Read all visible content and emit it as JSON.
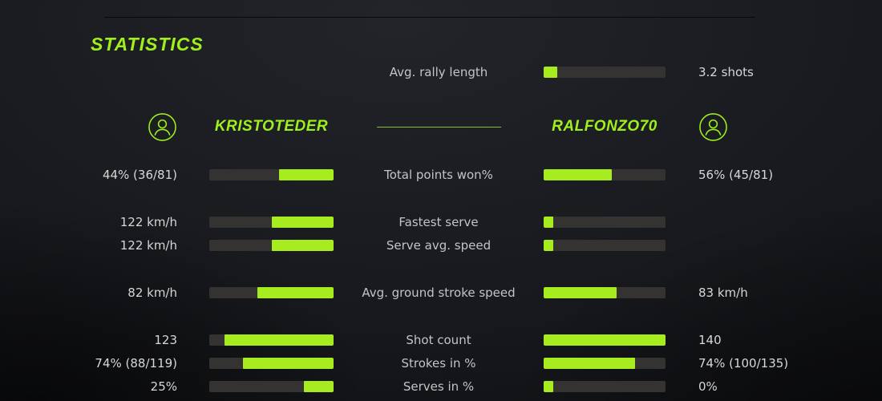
{
  "accent_color": "#a7ec1f",
  "title": "STATISTICS",
  "rally": {
    "label": "Avg. rally length",
    "value": "3.2 shots",
    "fill_pct": 11
  },
  "players": {
    "left": "KRISTOTEDER",
    "right": "RALFONZO70"
  },
  "stats": [
    {
      "label": "Total points won%",
      "left_value": "44% (36/81)",
      "right_value": "56% (45/81)",
      "left_fill_pct": 44,
      "right_fill_pct": 56
    },
    {
      "label": "Fastest serve",
      "left_value": "122 km/h",
      "right_value": "",
      "left_fill_pct": 50,
      "right_fill_pct": 8
    },
    {
      "label": "Serve avg. speed",
      "left_value": "122 km/h",
      "right_value": "",
      "left_fill_pct": 50,
      "right_fill_pct": 8
    },
    {
      "label": "Avg. ground stroke speed",
      "left_value": "82 km/h",
      "right_value": "83 km/h",
      "left_fill_pct": 61,
      "right_fill_pct": 60
    },
    {
      "label": "Shot count",
      "left_value": "123",
      "right_value": "140",
      "left_fill_pct": 88,
      "right_fill_pct": 100
    },
    {
      "label": "Strokes in %",
      "left_value": "74% (88/119)",
      "right_value": "74% (100/135)",
      "left_fill_pct": 73,
      "right_fill_pct": 75
    },
    {
      "label": "Serves in %",
      "left_value": "25%",
      "right_value": "0%",
      "left_fill_pct": 24,
      "right_fill_pct": 8
    }
  ]
}
